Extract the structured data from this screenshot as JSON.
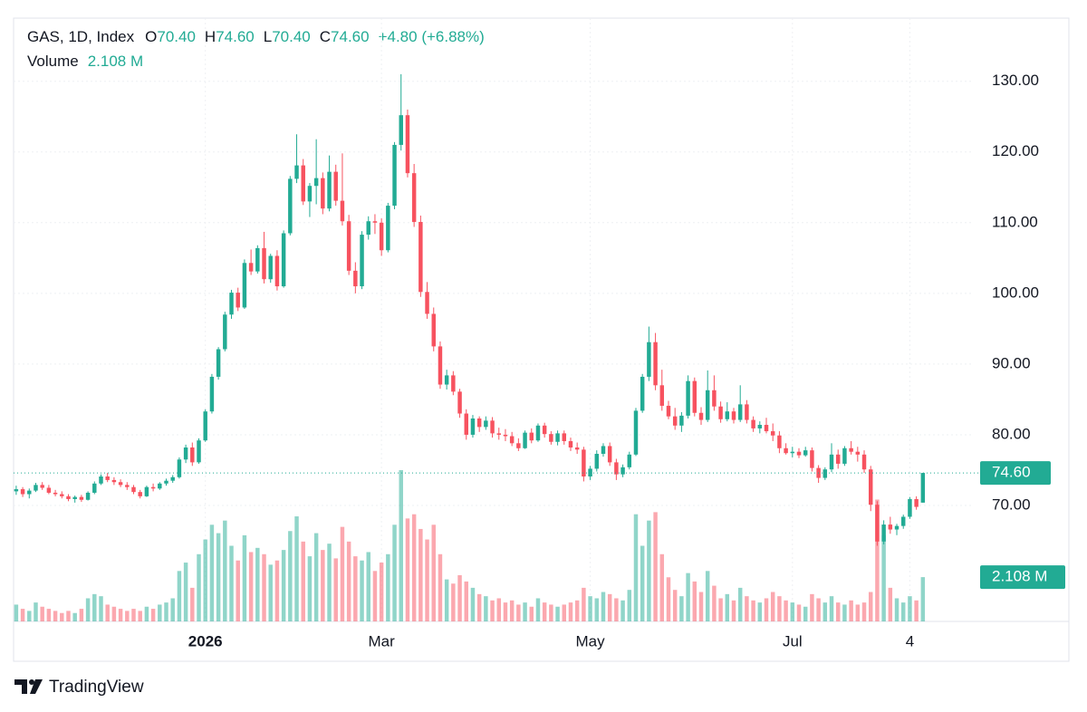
{
  "chart_data": {
    "type": "candlestick",
    "header": {
      "symbol": "GAS, 1D, Index",
      "open_label": "O",
      "open": "70.40",
      "high_label": "H",
      "high": "74.60",
      "low_label": "L",
      "low": "70.40",
      "close_label": "C",
      "close": "74.60",
      "change": "+4.80 (+6.88%)",
      "volume_label": "Volume",
      "volume": "2.108 M"
    },
    "ohlc": [
      [
        72,
        72.8,
        71.5,
        72.3
      ],
      [
        72.3,
        72.6,
        71.2,
        71.6
      ],
      [
        71.6,
        72.4,
        71,
        72.1
      ],
      [
        72.1,
        73.2,
        71.9,
        72.9
      ],
      [
        72.9,
        73.3,
        72.2,
        72.5
      ],
      [
        72.5,
        72.9,
        71.6,
        71.8
      ],
      [
        71.8,
        72.2,
        71.3,
        71.6
      ],
      [
        71.6,
        72,
        71,
        71.3
      ],
      [
        71.3,
        71.6,
        70.6,
        70.9
      ],
      [
        70.9,
        71.4,
        70.4,
        71.2
      ],
      [
        71.2,
        71.5,
        70.5,
        70.8
      ],
      [
        70.8,
        72,
        70.7,
        71.8
      ],
      [
        71.8,
        73.4,
        71.6,
        73.1
      ],
      [
        73.1,
        74.4,
        72.9,
        74.1
      ],
      [
        74.1,
        74.6,
        73.3,
        73.6
      ],
      [
        73.6,
        74,
        72.9,
        73.3
      ],
      [
        73.3,
        73.7,
        72.6,
        72.9
      ],
      [
        72.9,
        73.3,
        72.2,
        72.6
      ],
      [
        72.6,
        72.9,
        71.6,
        71.9
      ],
      [
        71.9,
        72.2,
        71,
        71.3
      ],
      [
        71.3,
        72.8,
        71.2,
        72.6
      ],
      [
        72.6,
        73.1,
        72,
        72.4
      ],
      [
        72.4,
        73.3,
        72.2,
        73.1
      ],
      [
        73.1,
        73.8,
        72.8,
        73.5
      ],
      [
        73.5,
        74.3,
        73.2,
        74
      ],
      [
        74,
        76.8,
        73.8,
        76.5
      ],
      [
        76.5,
        78.6,
        76,
        78.2
      ],
      [
        78.2,
        78.9,
        75.6,
        76.1
      ],
      [
        76.1,
        79.5,
        75.9,
        79.2
      ],
      [
        79.2,
        83.6,
        79,
        83.3
      ],
      [
        83.3,
        88.6,
        83,
        88.2
      ],
      [
        88.2,
        92.4,
        87.8,
        92.1
      ],
      [
        92.1,
        97.4,
        91.8,
        97
      ],
      [
        97,
        100.5,
        96.4,
        100.1
      ],
      [
        100.1,
        100.8,
        97.5,
        98
      ],
      [
        98,
        104.8,
        97.8,
        104.3
      ],
      [
        104.3,
        106.2,
        102.6,
        103.1
      ],
      [
        103.1,
        106.8,
        102.8,
        106.4
      ],
      [
        106.4,
        108.7,
        101.4,
        102
      ],
      [
        102,
        105.6,
        101.5,
        105.3
      ],
      [
        105.3,
        106.1,
        100.4,
        101
      ],
      [
        101,
        108.9,
        100.8,
        108.5
      ],
      [
        108.5,
        116.6,
        108.2,
        116.2
      ],
      [
        116.2,
        122.5,
        115.6,
        118.1
      ],
      [
        118.1,
        119,
        112.5,
        113
      ],
      [
        113,
        115.6,
        110.8,
        115.2
      ],
      [
        115.2,
        121.8,
        112.6,
        116.3
      ],
      [
        116.3,
        117.1,
        111.2,
        112
      ],
      [
        112,
        119.5,
        111.6,
        117.2
      ],
      [
        117.2,
        118.2,
        112.4,
        113.1
      ],
      [
        113.1,
        119.8,
        109.6,
        110.2
      ],
      [
        110.2,
        111.1,
        102.6,
        103.2
      ],
      [
        103.2,
        104.4,
        100,
        101
      ],
      [
        101,
        108.8,
        100.6,
        108.3
      ],
      [
        108.3,
        110.9,
        107.6,
        110.2
      ],
      [
        110.2,
        111.2,
        108.4,
        110
      ],
      [
        110,
        110.6,
        105.3,
        106.1
      ],
      [
        106.1,
        112.8,
        105.8,
        112.4
      ],
      [
        112.4,
        121.4,
        111.9,
        121
      ],
      [
        121,
        131,
        120.2,
        125.2
      ],
      [
        125.2,
        126,
        116.4,
        117
      ],
      [
        117,
        118.3,
        109.4,
        110.1
      ],
      [
        110.1,
        111,
        99.5,
        100.2
      ],
      [
        100.2,
        101.6,
        96.4,
        97.1
      ],
      [
        97.1,
        98,
        91.8,
        92.5
      ],
      [
        92.5,
        93.2,
        86.5,
        87.1
      ],
      [
        87.1,
        89.2,
        86.4,
        88.4
      ],
      [
        88.4,
        89,
        85.6,
        86.1
      ],
      [
        86.1,
        86.5,
        82.4,
        83
      ],
      [
        83,
        83.6,
        79.3,
        80
      ],
      [
        80,
        82.8,
        79.6,
        82.3
      ],
      [
        82.3,
        82.6,
        80.4,
        81.1
      ],
      [
        81.1,
        82.6,
        80.7,
        82
      ],
      [
        82,
        82.5,
        79.6,
        80.2
      ],
      [
        80.2,
        81,
        79.3,
        80
      ],
      [
        80,
        80.8,
        79.1,
        79.8
      ],
      [
        79.8,
        80.4,
        78.4,
        78.8
      ],
      [
        78.8,
        79.5,
        77.7,
        78.1
      ],
      [
        78.1,
        80.6,
        78,
        80.3
      ],
      [
        80.3,
        80.9,
        78.8,
        79.2
      ],
      [
        79.2,
        81.6,
        79,
        81.3
      ],
      [
        81.3,
        81.7,
        79.6,
        80.1
      ],
      [
        80.1,
        80.5,
        78.6,
        79
      ],
      [
        79,
        80.6,
        78.5,
        80.2
      ],
      [
        80.2,
        80.6,
        78.6,
        79.1
      ],
      [
        79.1,
        79.6,
        77.7,
        78.2
      ],
      [
        78.2,
        78.9,
        77.3,
        77.9
      ],
      [
        77.9,
        78.3,
        73.4,
        74.1
      ],
      [
        74.1,
        75.6,
        73.6,
        75.2
      ],
      [
        75.2,
        77.8,
        74.8,
        77.3
      ],
      [
        77.3,
        78.8,
        76.9,
        78.4
      ],
      [
        78.4,
        78.9,
        75.6,
        76.1
      ],
      [
        76.1,
        76.6,
        73.6,
        74.4
      ],
      [
        74.4,
        75.8,
        74,
        75.4
      ],
      [
        75.4,
        77.6,
        75.1,
        77.2
      ],
      [
        77.2,
        83.8,
        77,
        83.4
      ],
      [
        83.4,
        88.6,
        83.1,
        88.2
      ],
      [
        88.2,
        95.3,
        87.6,
        93.1
      ],
      [
        93.1,
        94.4,
        86.3,
        87
      ],
      [
        87,
        89.2,
        83.4,
        84.1
      ],
      [
        84.1,
        84.8,
        82.2,
        82.6
      ],
      [
        82.6,
        83.8,
        80.7,
        81.3
      ],
      [
        81.3,
        83.2,
        80.4,
        82.7
      ],
      [
        82.7,
        88.4,
        82.3,
        87.6
      ],
      [
        87.6,
        88.1,
        82.6,
        83.1
      ],
      [
        83.1,
        83.9,
        81.4,
        82.1
      ],
      [
        82.1,
        89.1,
        81.8,
        86.3
      ],
      [
        86.3,
        88.4,
        83.4,
        84
      ],
      [
        84,
        84.7,
        81.7,
        82.2
      ],
      [
        82.2,
        84.6,
        81.9,
        83.3
      ],
      [
        83.3,
        83.8,
        81.6,
        82.1
      ],
      [
        82.1,
        87,
        81.8,
        84.3
      ],
      [
        84.3,
        84.9,
        81.6,
        82.1
      ],
      [
        82.1,
        82.6,
        80.4,
        80.9
      ],
      [
        80.9,
        81.9,
        80.2,
        81.4
      ],
      [
        81.4,
        82.4,
        80.2,
        80.5
      ],
      [
        80.5,
        81.6,
        79.1,
        79.9
      ],
      [
        79.9,
        80.5,
        77.4,
        78.1
      ],
      [
        78.1,
        78.8,
        77.2,
        77.4
      ],
      [
        77.4,
        78.3,
        76.8,
        77.6
      ],
      [
        77.6,
        78.1,
        76.7,
        77.1
      ],
      [
        77.1,
        78.3,
        76.9,
        77.8
      ],
      [
        77.8,
        78.2,
        74.8,
        75.3
      ],
      [
        75.3,
        75.7,
        73.2,
        73.9
      ],
      [
        73.9,
        75.4,
        73.6,
        75.1
      ],
      [
        75.1,
        78.8,
        74.7,
        77.2
      ],
      [
        77.2,
        77.9,
        75.2,
        75.9
      ],
      [
        75.9,
        78.4,
        75.6,
        78.1
      ],
      [
        78.1,
        79.1,
        77.2,
        77.6
      ],
      [
        77.6,
        78.3,
        76.2,
        77.2
      ],
      [
        77.2,
        77.8,
        74.6,
        75.1
      ],
      [
        75.1,
        75.6,
        69.2,
        70.1
      ],
      [
        70.1,
        70.6,
        64.3,
        64.9
      ],
      [
        64.9,
        67.9,
        64.5,
        67.3
      ],
      [
        67.3,
        68.4,
        66,
        66.6
      ],
      [
        66.6,
        67.4,
        65.8,
        67.1
      ],
      [
        67.1,
        68.7,
        66.7,
        68.4
      ],
      [
        68.4,
        71.2,
        68.1,
        70.9
      ],
      [
        70.9,
        71.3,
        69.4,
        69.8
      ],
      [
        70.4,
        74.6,
        70.4,
        74.6
      ]
    ],
    "volume": [
      0.8,
      0.6,
      0.5,
      0.9,
      0.7,
      0.6,
      0.5,
      0.4,
      0.5,
      0.4,
      0.6,
      1.1,
      1.3,
      1.2,
      0.8,
      0.7,
      0.6,
      0.5,
      0.6,
      0.5,
      0.7,
      0.6,
      0.8,
      0.9,
      1.1,
      2.4,
      2.8,
      1.6,
      3.2,
      3.9,
      4.6,
      4.2,
      4.8,
      3.6,
      2.9,
      4.1,
      3.3,
      3.5,
      3.2,
      2.7,
      2.9,
      3.4,
      4.3,
      5.0,
      3.8,
      3.1,
      4.2,
      3.4,
      3.7,
      3.0,
      4.5,
      3.8,
      3.1,
      2.9,
      3.3,
      2.4,
      2.8,
      3.2,
      4.6,
      7.2,
      4.9,
      5.1,
      4.4,
      3.9,
      4.6,
      3.2,
      2.0,
      1.8,
      2.2,
      1.9,
      1.6,
      1.3,
      1.2,
      1.0,
      1.1,
      0.9,
      1.0,
      0.8,
      0.9,
      0.7,
      1.1,
      0.9,
      0.8,
      0.7,
      0.8,
      0.9,
      1.0,
      1.6,
      1.2,
      1.1,
      1.4,
      1.3,
      1.1,
      1.0,
      1.5,
      5.1,
      3.6,
      4.8,
      5.2,
      3.2,
      2.1,
      1.5,
      1.2,
      2.3,
      1.9,
      1.4,
      2.4,
      1.7,
      1.1,
      1.3,
      1.0,
      1.6,
      1.2,
      1.0,
      0.9,
      1.1,
      1.4,
      1.2,
      1.0,
      0.9,
      0.8,
      0.7,
      1.3,
      1.1,
      0.9,
      1.2,
      0.9,
      0.8,
      1.0,
      0.8,
      0.9,
      1.4,
      5.8,
      4.1,
      1.6,
      1.1,
      0.9,
      1.2,
      1.0,
      2.108
    ],
    "up_color": "#22ab94",
    "down_color": "#f7525f",
    "ylim": [
      53.6,
      131.5
    ],
    "yticks": [
      {
        "value": 70,
        "label": "70.00"
      },
      {
        "value": 80,
        "label": "80.00"
      },
      {
        "value": 90,
        "label": "90.00"
      },
      {
        "value": 100,
        "label": "100.00"
      },
      {
        "value": 110,
        "label": "110.00"
      },
      {
        "value": 120,
        "label": "120.00"
      },
      {
        "value": 130,
        "label": "130.00"
      }
    ],
    "xlim": [
      -0.4,
      146.8
    ],
    "xticks": [
      {
        "value": 29,
        "label": "2026"
      },
      {
        "value": 56,
        "label": "Mar"
      },
      {
        "value": 88,
        "label": "May"
      },
      {
        "value": 119,
        "label": "Jul"
      },
      {
        "value": 137,
        "label": "4"
      }
    ],
    "last_price": {
      "value": 74.6,
      "label": "74.60"
    },
    "last_volume": {
      "value": 2.108,
      "label": "2.108 M"
    },
    "grid": true
  },
  "footer": {
    "brand": "TradingView"
  }
}
